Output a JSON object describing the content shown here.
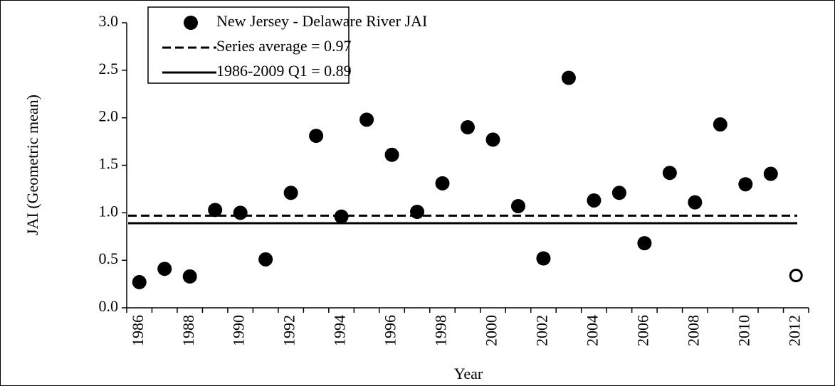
{
  "chart_data": {
    "type": "scatter",
    "y_label": "JAI (Geometric mean)",
    "x_label": "Year",
    "categories": [
      "1986",
      null,
      "1988",
      null,
      "1990",
      null,
      "1992",
      null,
      "1994",
      null,
      "1996",
      null,
      "1998",
      null,
      "2000",
      null,
      "2002",
      null,
      "2004",
      null,
      "2006",
      null,
      "2008",
      null,
      "2010",
      null,
      "2012"
    ],
    "series": [
      {
        "name": "New Jersey - Delaware River JAI",
        "color": "#000000",
        "values": [
          0.27,
          0.41,
          0.33,
          1.03,
          1.0,
          0.51,
          1.21,
          1.81,
          0.96,
          1.98,
          1.61,
          1.01,
          1.31,
          1.9,
          1.77,
          1.07,
          0.52,
          2.42,
          1.13,
          1.21,
          0.68,
          1.42,
          1.11,
          1.93,
          1.3,
          1.41,
          0.34
        ],
        "filled": [
          true,
          true,
          true,
          true,
          true,
          true,
          true,
          true,
          true,
          true,
          true,
          true,
          true,
          true,
          true,
          true,
          true,
          true,
          true,
          true,
          true,
          true,
          true,
          true,
          true,
          true,
          false
        ]
      }
    ],
    "reference_lines": [
      {
        "name": "Series average = 0.97",
        "value": 0.97,
        "style": "dashed",
        "color": "#000000"
      },
      {
        "name": "1986-2009 Q1 = 0.89",
        "value": 0.89,
        "style": "solid",
        "color": "#000000"
      }
    ],
    "ylim": [
      0,
      3
    ],
    "yticks": [
      {
        "value": 0,
        "label": "0.0"
      },
      0.5,
      {
        "value": 1,
        "label": "1.0"
      },
      1.5,
      {
        "value": 2,
        "label": "2.0"
      },
      2.5,
      {
        "value": 3,
        "label": "3.0"
      }
    ],
    "legend": "upper left"
  }
}
